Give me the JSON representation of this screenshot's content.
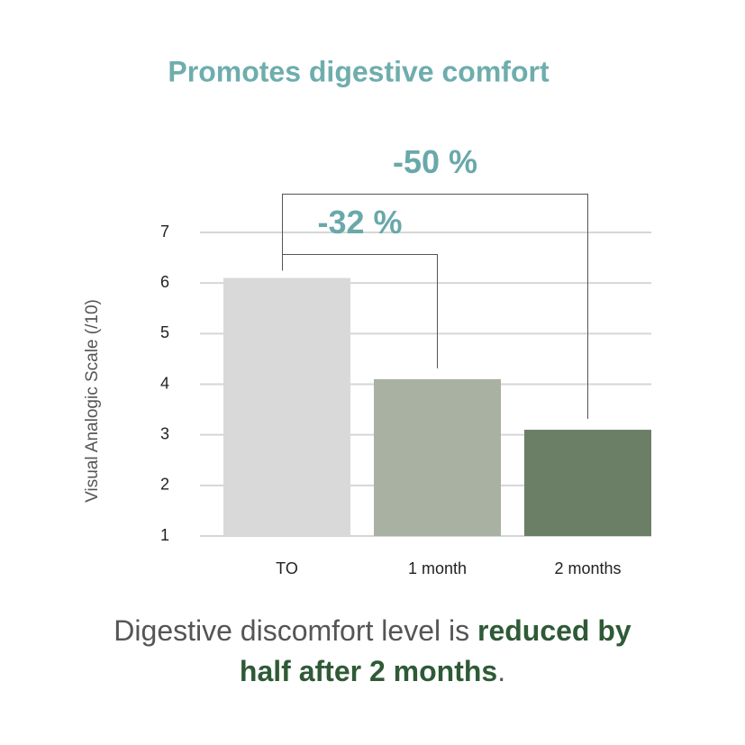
{
  "chart_data": {
    "type": "bar",
    "title": "Promotes digestive comfort",
    "y_label": "Visual Analogic Scale (/10)",
    "categories": [
      "TO",
      "1 month",
      "2 months"
    ],
    "values": [
      6.1,
      4.1,
      3.1
    ],
    "colors": [
      "#d9d9d9",
      "#a9b1a2",
      "#6a7f66"
    ],
    "ylim": [
      1,
      7
    ],
    "yticks": [
      1,
      2,
      3,
      4,
      5,
      6,
      7
    ],
    "grid": true,
    "annotations": [
      "-32 %",
      "-50 %"
    ]
  },
  "caption": {
    "text": "Digestive discomfort level is",
    "emphasis": "reduced by half after 2 months",
    "end": "."
  }
}
